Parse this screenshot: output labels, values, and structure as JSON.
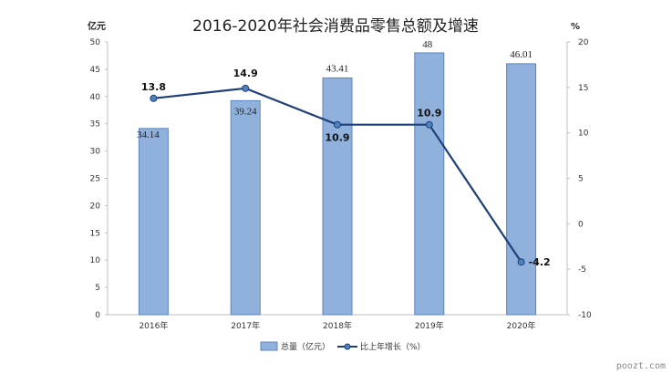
{
  "colors": {
    "bar_fill": "#8fb1dc",
    "bar_stroke": "#5b84bf",
    "line": "#1f3f7a",
    "marker": "#4f81bd",
    "grid": "#d9d9d9"
  },
  "watermark": "poozt.com",
  "chart_data": {
    "type": "bar",
    "title": "2016-2020年社会消费品零售总额及增速",
    "categories": [
      "2016年",
      "2017年",
      "2018年",
      "2019年",
      "2020年"
    ],
    "series": [
      {
        "name": "总量（亿元）",
        "kind": "bar",
        "axis": "left",
        "values": [
          34.14,
          39.24,
          43.41,
          48,
          46.01
        ],
        "labels": [
          "34.14",
          "39.24",
          "43.41",
          "48",
          "46.01"
        ]
      },
      {
        "name": "比上年增长（%）",
        "kind": "line",
        "axis": "right",
        "values": [
          13.8,
          14.9,
          10.9,
          10.9,
          -4.2
        ],
        "labels": [
          "13.8",
          "14.9",
          "10.9",
          "10.9",
          "-4.2"
        ]
      }
    ],
    "y_left": {
      "label": "亿元",
      "range": [
        0,
        50
      ],
      "ticks": [
        "0",
        "5",
        "10",
        "15",
        "20",
        "25",
        "30",
        "35",
        "40",
        "45",
        "50"
      ]
    },
    "y_right": {
      "label": "%",
      "range": [
        -10,
        20
      ],
      "ticks": [
        "-10",
        "-5",
        "0",
        "5",
        "10",
        "15",
        "20"
      ]
    },
    "grid": false,
    "legend_position": "bottom"
  }
}
